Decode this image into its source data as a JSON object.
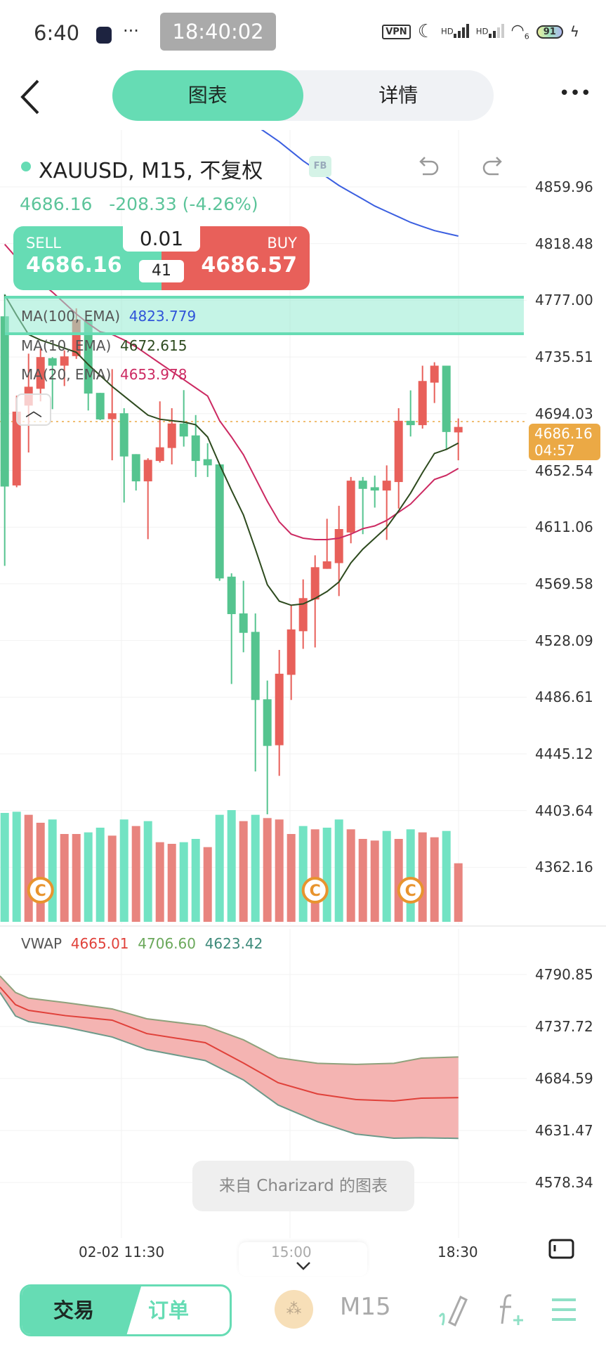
{
  "status_bar": {
    "time": "6:40",
    "clock": "18:40:02",
    "more": "···",
    "vpn": "VPN",
    "hd1": "HD",
    "hd2": "HD",
    "wifi_gen": "6",
    "battery": "91"
  },
  "nav": {
    "tabs": [
      {
        "label": "图表",
        "active": true
      },
      {
        "label": "详情",
        "active": false
      }
    ],
    "more": "•••"
  },
  "symbol": {
    "title": "XAUUSD, M15, 不复权",
    "badge": "FB",
    "price": "4686.16",
    "change": "-208.33 (-4.26%)"
  },
  "trade": {
    "sell_label": "SELL",
    "sell_price": "4686.16",
    "buy_label": "BUY",
    "buy_price": "4686.57",
    "lot": "0.01",
    "spread": "41"
  },
  "indicators": [
    {
      "label": "MA(100, EMA)",
      "value": "4823.779",
      "color": "#2f54d9"
    },
    {
      "label": "MA(10, EMA)",
      "value": "4672.615",
      "color": "#2d4a1e"
    },
    {
      "label": "MA(20, EMA)",
      "value": "4653.978",
      "color": "#cc2a62"
    }
  ],
  "price_tag": {
    "price": "4686.16",
    "countdown": "04:57",
    "color": "#eba945"
  },
  "price_axis": [
    "4859.96",
    "4818.48",
    "4777.00",
    "4735.51",
    "4694.03",
    "4652.54",
    "4611.06",
    "4569.58",
    "4528.09",
    "4486.61",
    "4445.12",
    "4403.64",
    "4362.16"
  ],
  "vwap_axis": [
    "4790.85",
    "4737.72",
    "4684.59",
    "4631.47",
    "4578.34"
  ],
  "vwap": {
    "label": "VWAP",
    "values": [
      "4665.01",
      "4706.60",
      "4623.42"
    ],
    "colors": [
      "#e0413a",
      "#6aa85a",
      "#3d8a7a"
    ]
  },
  "watermark": "来自 Charizard 的图表",
  "time_axis": [
    "02-02 11:30",
    "15:00",
    "18:30"
  ],
  "bottom_bar": {
    "trade": "交易",
    "orders": "订单",
    "timeframe": "M15"
  },
  "colors": {
    "up": "#e8605a",
    "down": "#55c48f",
    "vol_up": "#e8847e",
    "vol_down": "#72e3c3",
    "accent": "#66dcb4"
  },
  "chart_data": [
    {
      "type": "candlestick",
      "title": "XAUUSD, M15",
      "ylim": [
        4323.5,
        4901.6
      ],
      "ohlc": [
        [
          4765.3,
          4781.5,
          4582.8,
          4640.8
        ],
        [
          4641.6,
          4707.3,
          4640.3,
          4695.6
        ],
        [
          4700.0,
          4738.0,
          4665.7,
          4713.8
        ],
        [
          4712.3,
          4741.7,
          4703.1,
          4735.5
        ],
        [
          4734.7,
          4735.5,
          4697.4,
          4729.2
        ],
        [
          4729.2,
          4740.4,
          4714.3,
          4736.0
        ],
        [
          4736.2,
          4771.1,
          4734.2,
          4762.9
        ],
        [
          4762.9,
          4762.9,
          4696.4,
          4708.8
        ],
        [
          4709.3,
          4709.3,
          4689.4,
          4689.9
        ],
        [
          4690.1,
          4726.7,
          4660.0,
          4694.4
        ],
        [
          4694.4,
          4698.1,
          4629.1,
          4662.8
        ],
        [
          4664.5,
          4664.5,
          4637.9,
          4644.6
        ],
        [
          4644.6,
          4661.5,
          4602.3,
          4660.3
        ],
        [
          4659.5,
          4703.1,
          4658.3,
          4669.5
        ],
        [
          4669.0,
          4698.1,
          4657.0,
          4686.9
        ],
        [
          4686.9,
          4711.3,
          4670.0,
          4677.4
        ],
        [
          4678.2,
          4693.1,
          4647.8,
          4659.5
        ],
        [
          4660.8,
          4672.5,
          4647.8,
          4656.3
        ],
        [
          4657.0,
          4657.0,
          4571.9,
          4573.6
        ],
        [
          4574.9,
          4577.3,
          4496.4,
          4547.5
        ],
        [
          4548.0,
          4571.9,
          4519.6,
          4533.8
        ],
        [
          4534.5,
          4548.0,
          4432.4,
          4484.7
        ],
        [
          4485.2,
          4498.9,
          4401.1,
          4451.1
        ],
        [
          4451.6,
          4521.3,
          4429.2,
          4503.9
        ],
        [
          4503.1,
          4553.7,
          4484.7,
          4536.3
        ],
        [
          4535.0,
          4572.9,
          4522.1,
          4559.2
        ],
        [
          4558.2,
          4590.5,
          4523.1,
          4581.8
        ],
        [
          4580.6,
          4617.2,
          4580.6,
          4586.1
        ],
        [
          4584.8,
          4626.7,
          4560.7,
          4609.7
        ],
        [
          4607.2,
          4647.8,
          4599.3,
          4645.1
        ],
        [
          4645.1,
          4647.8,
          4606.0,
          4639.1
        ],
        [
          4640.3,
          4648.8,
          4625.4,
          4637.9
        ],
        [
          4637.9,
          4656.3,
          4601.8,
          4645.1
        ],
        [
          4644.1,
          4698.1,
          4624.7,
          4688.9
        ],
        [
          4688.9,
          4711.1,
          4677.4,
          4685.7
        ],
        [
          4685.7,
          4729.2,
          4683.2,
          4718.0
        ],
        [
          4716.8,
          4731.7,
          4701.9,
          4729.2
        ],
        [
          4729.2,
          4729.2,
          4667.7,
          4680.7
        ],
        [
          4680.4,
          4690.6,
          4660.0,
          4684.4
        ]
      ],
      "ma10": [
        4781,
        4766,
        4752,
        4748,
        4745,
        4742,
        4739,
        4730,
        4722,
        4714,
        4707,
        4700,
        4693,
        4690,
        4689,
        4688,
        4686,
        4677,
        4657,
        4638,
        4620,
        4595,
        4569,
        4557,
        4554,
        4555,
        4559,
        4564,
        4571,
        4585,
        4595,
        4603,
        4611,
        4623,
        4636,
        4651,
        4665,
        4668,
        4672.6
      ],
      "ma20": [
        4818,
        4808,
        4798,
        4790,
        4783,
        4775,
        4767,
        4760,
        4754,
        4752,
        4748,
        4743,
        4737,
        4731,
        4725,
        4719,
        4713,
        4707,
        4689,
        4677,
        4664,
        4647,
        4630,
        4615,
        4606,
        4603,
        4602,
        4602,
        4603,
        4606,
        4610,
        4612,
        4616,
        4622,
        4628,
        4637,
        4646,
        4649,
        4654
      ],
      "ma100": [
        null,
        null,
        null,
        null,
        null,
        null,
        null,
        null,
        null,
        null,
        null,
        null,
        null,
        null,
        null,
        null,
        null,
        null,
        null,
        null,
        null,
        4905,
        4899,
        4893,
        4886,
        4879,
        4873,
        4867,
        4861,
        4856,
        4851,
        4846,
        4842,
        4838,
        4834,
        4831,
        4828,
        4826,
        4824
      ],
      "current_price": 4686.16,
      "volume": [
        465,
        470,
        457,
        423,
        437,
        375,
        375,
        382,
        402,
        368,
        437,
        409,
        430,
        340,
        333,
        340,
        354,
        319,
        457,
        477,
        430,
        457,
        443,
        437,
        375,
        409,
        395,
        402,
        437,
        395,
        354,
        347,
        388,
        354,
        395,
        382,
        361,
        388,
        250
      ],
      "volume_dir": [
        "d",
        "d",
        "u",
        "u",
        "d",
        "u",
        "u",
        "d",
        "d",
        "u",
        "d",
        "u",
        "d",
        "u",
        "u",
        "d",
        "d",
        "u",
        "d",
        "d",
        "u",
        "d",
        "u",
        "u",
        "u",
        "d",
        "u",
        "d",
        "d",
        "u",
        "u",
        "u",
        "d",
        "u",
        "d",
        "u",
        "u",
        "d",
        "u"
      ],
      "volume_max": 480,
      "markers": [
        {
          "index": 3,
          "symbol": "C"
        },
        {
          "index": 26,
          "symbol": "C"
        },
        {
          "index": 34,
          "symbol": "C"
        }
      ]
    },
    {
      "type": "area",
      "title": "VWAP",
      "ylim": [
        4523.0,
        4835.4
      ],
      "x": [
        -0.4,
        0.9,
        2.0,
        5.1,
        9.0,
        11.9,
        16.8,
        20.0,
        22.9,
        26.2,
        29.4,
        32.6,
        34.9,
        38.0
      ],
      "series": [
        {
          "name": "vwap",
          "values": [
            4778.1,
            4760,
            4754.2,
            4748.8,
            4744.2,
            4730.5,
            4721.2,
            4700.4,
            4680.3,
            4668.8,
            4663.1,
            4661.6,
            4664.5,
            4665.0
          ]
        },
        {
          "name": "upper",
          "values": [
            4789.4,
            4772.5,
            4766.7,
            4762.1,
            4755.7,
            4745.6,
            4738.4,
            4724.1,
            4705.8,
            4700.1,
            4699,
            4700.1,
            4705.4,
            4706.6
          ]
        },
        {
          "name": "lower",
          "values": [
            4772.5,
            4748.5,
            4742.7,
            4737,
            4727,
            4714.2,
            4702.9,
            4683.1,
            4657.5,
            4640.5,
            4627.8,
            4623.6,
            4624,
            4623.4
          ]
        }
      ]
    }
  ]
}
